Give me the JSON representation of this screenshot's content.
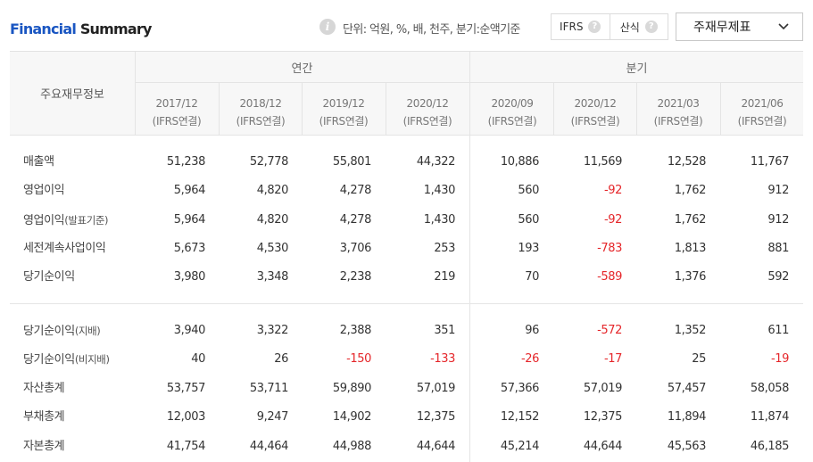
{
  "header": {
    "title_part1": "Financial",
    "title_part2": "Summary",
    "info_icon": "i",
    "unit_note": "단위: 억원, %, 배, 천주, 분기:순액기준",
    "toggle": [
      {
        "label": "IFRS",
        "help": "?"
      },
      {
        "label": "산식",
        "help": "?"
      }
    ],
    "select_value": "주재무제표"
  },
  "table": {
    "stub_header": "주요재무정보",
    "groups": [
      "연간",
      "분기"
    ],
    "periods": [
      {
        "date": "2017/12",
        "basis": "(IFRS연결)"
      },
      {
        "date": "2018/12",
        "basis": "(IFRS연결)"
      },
      {
        "date": "2019/12",
        "basis": "(IFRS연결)"
      },
      {
        "date": "2020/12",
        "basis": "(IFRS연결)"
      },
      {
        "date": "2020/09",
        "basis": "(IFRS연결)"
      },
      {
        "date": "2020/12",
        "basis": "(IFRS연결)"
      },
      {
        "date": "2021/03",
        "basis": "(IFRS연결)"
      },
      {
        "date": "2021/06",
        "basis": "(IFRS연결)"
      }
    ],
    "rows": [
      {
        "label": "매출액",
        "suffix": "",
        "values": [
          "51,238",
          "52,778",
          "55,801",
          "44,322",
          "10,886",
          "11,569",
          "12,528",
          "11,767"
        ]
      },
      {
        "label": "영업이익",
        "suffix": "",
        "values": [
          "5,964",
          "4,820",
          "4,278",
          "1,430",
          "560",
          "-92",
          "1,762",
          "912"
        ]
      },
      {
        "label": "영업이익",
        "suffix": "(발표기준)",
        "values": [
          "5,964",
          "4,820",
          "4,278",
          "1,430",
          "560",
          "-92",
          "1,762",
          "912"
        ]
      },
      {
        "label": "세전계속사업이익",
        "suffix": "",
        "values": [
          "5,673",
          "4,530",
          "3,706",
          "253",
          "193",
          "-783",
          "1,813",
          "881"
        ]
      },
      {
        "label": "당기순이익",
        "suffix": "",
        "values": [
          "3,980",
          "3,348",
          "2,238",
          "219",
          "70",
          "-589",
          "1,376",
          "592"
        ]
      },
      {
        "label": "당기순이익",
        "suffix": "(지배)",
        "values": [
          "3,940",
          "3,322",
          "2,388",
          "351",
          "96",
          "-572",
          "1,352",
          "611"
        ]
      },
      {
        "label": "당기순이익",
        "suffix": "(비지배)",
        "values": [
          "40",
          "26",
          "-150",
          "-133",
          "-26",
          "-17",
          "25",
          "-19"
        ]
      },
      {
        "label": "자산총계",
        "suffix": "",
        "values": [
          "53,757",
          "53,711",
          "59,890",
          "57,019",
          "57,366",
          "57,019",
          "57,457",
          "58,058"
        ]
      },
      {
        "label": "부채총계",
        "suffix": "",
        "values": [
          "12,003",
          "9,247",
          "14,902",
          "12,375",
          "12,152",
          "12,375",
          "11,894",
          "11,874"
        ]
      },
      {
        "label": "자본총계",
        "suffix": "",
        "values": [
          "41,754",
          "44,464",
          "44,988",
          "44,644",
          "45,214",
          "44,644",
          "45,563",
          "46,185"
        ]
      }
    ]
  },
  "colors": {
    "accent": "#1a56c2",
    "negative": "#e5262a"
  }
}
